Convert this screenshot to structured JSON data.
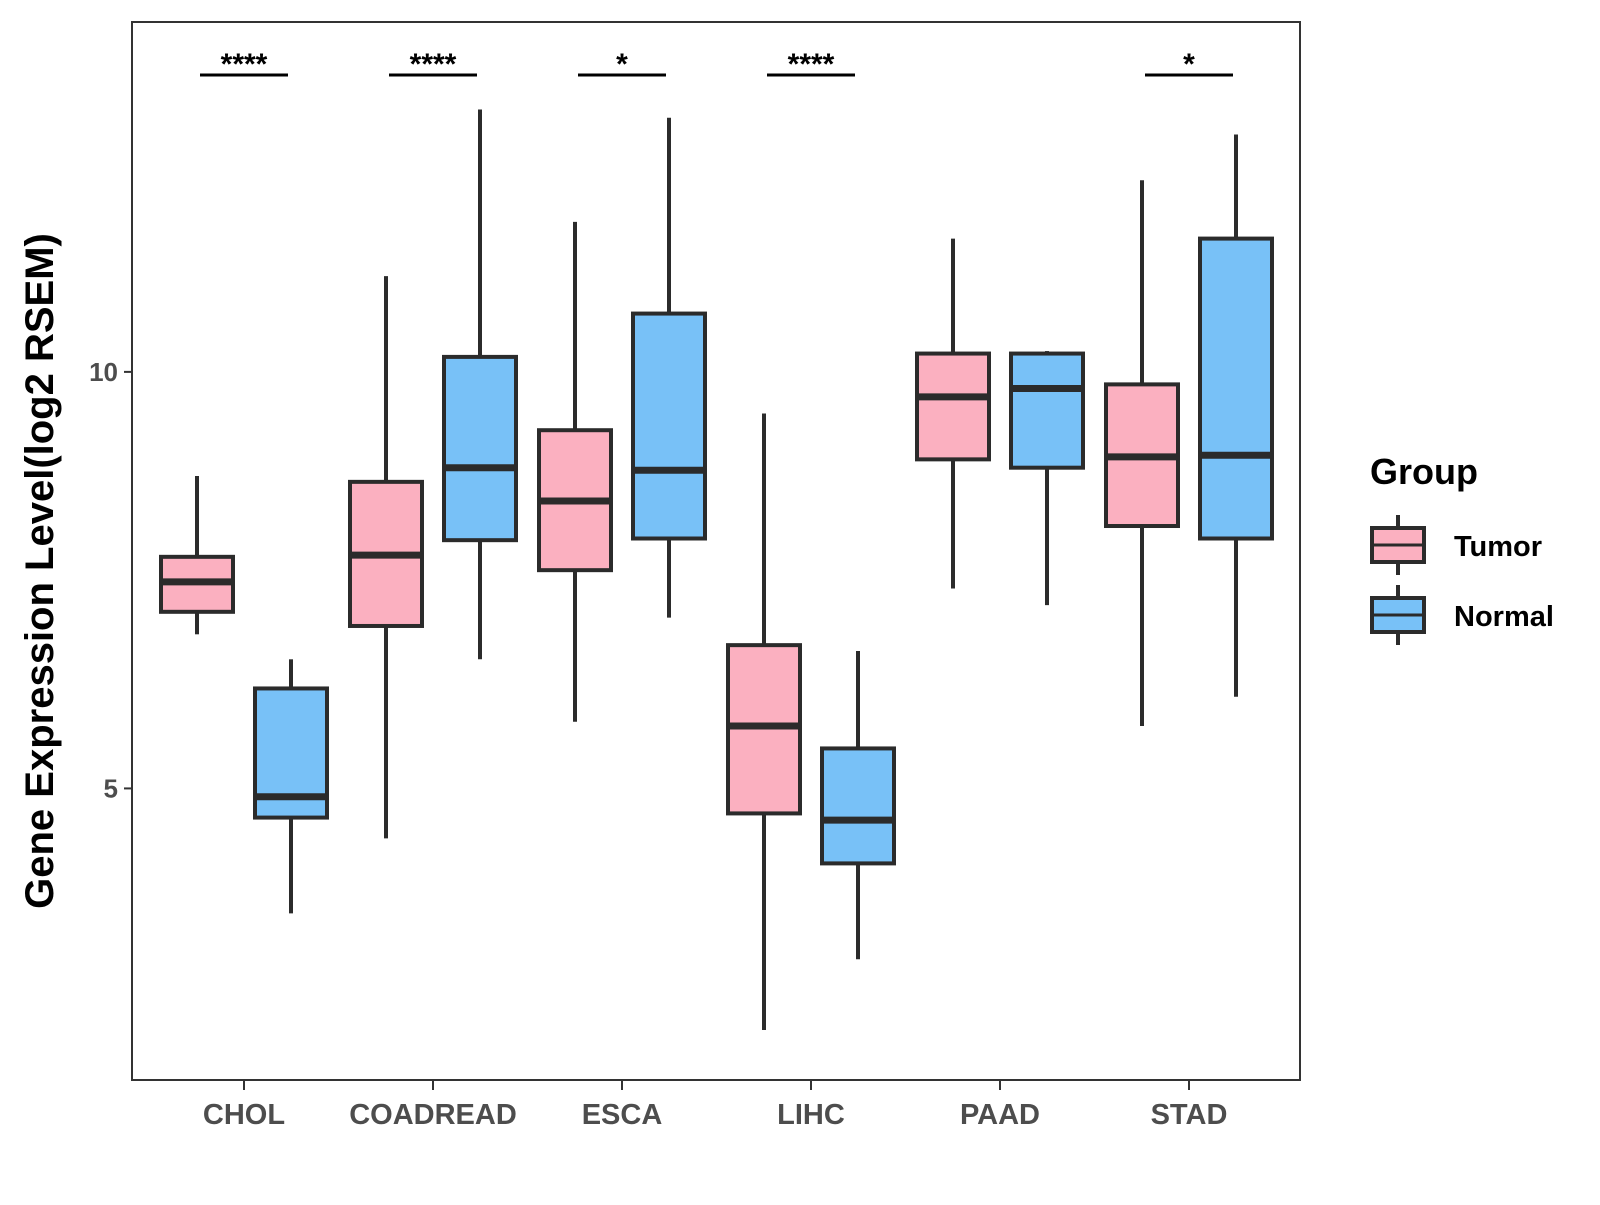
{
  "chart_data": {
    "type": "boxplot",
    "ylabel": "Gene Expression Level(log2 RSEM)",
    "xlabel": "",
    "ylim": [
      1.5,
      14.2
    ],
    "y_ticks": [
      5,
      10
    ],
    "y_tick_labels": [
      "5",
      "10"
    ],
    "categories": [
      "CHOL",
      "COADREAD",
      "ESCA",
      "LIHC",
      "PAAD",
      "STAD"
    ],
    "legend": {
      "title": "Group",
      "position": "right",
      "entries": [
        {
          "name": "Tumor",
          "color": "#fbb0c0"
        },
        {
          "name": "Normal",
          "color": "#78c1f7"
        }
      ]
    },
    "series": [
      {
        "name": "Tumor",
        "color": "#fbb0c0",
        "boxes": [
          {
            "category": "CHOL",
            "min": 6.85,
            "q1": 7.12,
            "median": 7.48,
            "q3": 7.78,
            "max": 8.75
          },
          {
            "category": "COADREAD",
            "min": 4.4,
            "q1": 6.95,
            "median": 7.8,
            "q3": 8.68,
            "max": 11.15
          },
          {
            "category": "ESCA",
            "min": 5.8,
            "q1": 7.62,
            "median": 8.45,
            "q3": 9.3,
            "max": 11.8
          },
          {
            "category": "LIHC",
            "min": 2.1,
            "q1": 4.7,
            "median": 5.75,
            "q3": 6.72,
            "max": 9.5
          },
          {
            "category": "PAAD",
            "min": 7.4,
            "q1": 8.95,
            "median": 9.7,
            "q3": 10.22,
            "max": 11.6
          },
          {
            "category": "STAD",
            "min": 5.75,
            "q1": 8.15,
            "median": 8.98,
            "q3": 9.85,
            "max": 12.3
          }
        ]
      },
      {
        "name": "Normal",
        "color": "#78c1f7",
        "boxes": [
          {
            "category": "CHOL",
            "min": 3.5,
            "q1": 4.65,
            "median": 4.9,
            "q3": 6.2,
            "max": 6.55
          },
          {
            "category": "COADREAD",
            "min": 6.55,
            "q1": 7.98,
            "median": 8.85,
            "q3": 10.18,
            "max": 13.15
          },
          {
            "category": "ESCA",
            "min": 7.05,
            "q1": 8.0,
            "median": 8.82,
            "q3": 10.7,
            "max": 13.05
          },
          {
            "category": "LIHC",
            "min": 2.95,
            "q1": 4.1,
            "median": 4.62,
            "q3": 5.48,
            "max": 6.65
          },
          {
            "category": "PAAD",
            "min": 7.2,
            "q1": 8.85,
            "median": 9.8,
            "q3": 10.22,
            "max": 10.25
          },
          {
            "category": "STAD",
            "min": 6.1,
            "q1": 8.0,
            "median": 9.0,
            "q3": 11.6,
            "max": 12.85
          }
        ]
      }
    ],
    "significance": [
      {
        "category": "CHOL",
        "label": "****"
      },
      {
        "category": "COADREAD",
        "label": "****"
      },
      {
        "category": "ESCA",
        "label": "*"
      },
      {
        "category": "LIHC",
        "label": "****"
      },
      {
        "category": "STAD",
        "label": "*"
      }
    ]
  }
}
